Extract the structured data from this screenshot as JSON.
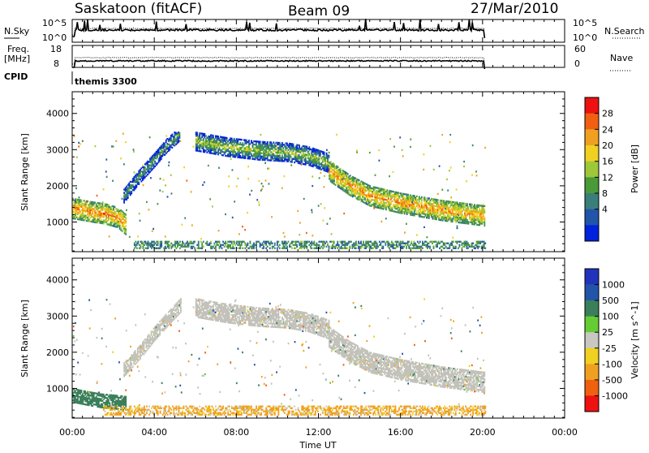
{
  "header": {
    "station": "Saskatoon (fitACF)",
    "beam": "Beam 09",
    "date": "27/Mar/2010"
  },
  "strips": {
    "nsky_label": "N.Sky",
    "nsky_ticks": [
      "10^5",
      "10^0"
    ],
    "nsearch_label": "N.Search",
    "nsearch_ticks": [
      "10^5",
      "10^0"
    ],
    "freq_label": "Freq.",
    "freq_unit": "[MHz]",
    "freq_ticks": [
      "18",
      "8"
    ],
    "nave_label": "Nave",
    "nave_ticks": [
      "60",
      "0"
    ],
    "cpid_label": "CPID",
    "cpid_value": "themis 3300"
  },
  "colors": {
    "power": [
      "#0022dd",
      "#2255aa",
      "#3a7f7a",
      "#4a9a3a",
      "#9ec83a",
      "#f0d020",
      "#f0a020",
      "#f06010",
      "#ee1111"
    ],
    "velocity": [
      "#2233bb",
      "#2255aa",
      "#3a7f5a",
      "#66cc33",
      "#c8c8c0",
      "#f0d020",
      "#f0a020",
      "#f06010",
      "#ee1111"
    ],
    "ground_scatter": "#c2c2ba"
  },
  "chart_data": {
    "type": "heatmap",
    "x_axis": {
      "label": "Time UT",
      "range_hours": [
        0,
        24
      ],
      "ticks": [
        "00:00",
        "04:00",
        "08:00",
        "12:00",
        "16:00",
        "20:00",
        "00:00"
      ],
      "tick_hours": [
        0,
        4,
        8,
        12,
        16,
        20,
        24
      ]
    },
    "y_axis": {
      "label": "Slant Range [km]",
      "range_km": [
        180,
        4600
      ],
      "ticks": [
        "1000",
        "2000",
        "3000",
        "4000"
      ],
      "tick_values": [
        1000,
        2000,
        3000,
        4000
      ]
    },
    "data_end_hour": 20.1,
    "power_panel": {
      "colorbar_label": "Power [dB]",
      "colorbar_ticks": [
        "28",
        "24",
        "20",
        "16",
        "12",
        "8",
        "4"
      ],
      "colorbar_range_db": [
        0,
        32
      ],
      "bands": [
        {
          "hours": [
            0.0,
            0.5,
            1.0,
            1.6,
            2.2,
            2.6
          ],
          "ranges_km": [
            1350,
            1300,
            1250,
            1200,
            1100,
            900
          ],
          "width_km": 550,
          "power_db": 25
        },
        {
          "hours": [
            2.5,
            3.2,
            4.0,
            4.6,
            5.2
          ],
          "ranges_km": [
            1700,
            2200,
            2700,
            3100,
            3400
          ],
          "width_km": 380,
          "power_db": 13
        },
        {
          "hours": [
            6.0,
            7.5,
            9.0,
            10.5,
            11.5,
            12.5
          ],
          "ranges_km": [
            3200,
            3050,
            2950,
            2900,
            2800,
            2600
          ],
          "width_km": 500,
          "power_db": 16
        },
        {
          "hours": [
            12.5,
            13.5,
            14.5,
            16.0,
            18.0,
            20.1
          ],
          "ranges_km": [
            2400,
            2000,
            1700,
            1500,
            1300,
            1150
          ],
          "width_km": 560,
          "power_db": 24
        }
      ],
      "near_range_band": {
        "hours": [
          3.0,
          20.1
        ],
        "range_km": [
          250,
          450
        ],
        "power_db": 10
      }
    },
    "velocity_panel": {
      "colorbar_label": "Velocity [m s^-1]",
      "colorbar_ticks": [
        "1000",
        "500",
        "100",
        "25",
        "-25",
        "-100",
        "-500",
        "-1000"
      ],
      "bands": [
        {
          "hours": [
            0.0,
            0.7,
            1.4,
            2.0,
            2.6
          ],
          "ranges_km": [
            800,
            720,
            650,
            620,
            580
          ],
          "width_km": 400,
          "velocity_ms": 150
        },
        {
          "hours": [
            2.5,
            3.3,
            4.0,
            4.8,
            5.3
          ],
          "ranges_km": [
            1500,
            2000,
            2500,
            3000,
            3300
          ],
          "width_km": 380,
          "velocity_ms": 0
        },
        {
          "hours": [
            6.0,
            7.5,
            9.0,
            10.5,
            11.5,
            12.5
          ],
          "ranges_km": [
            3200,
            3050,
            2950,
            2900,
            2800,
            2600
          ],
          "width_km": 500,
          "velocity_ms": 0
        },
        {
          "hours": [
            12.5,
            13.5,
            14.5,
            16.0,
            18.0,
            20.1
          ],
          "ranges_km": [
            2400,
            2000,
            1700,
            1500,
            1300,
            1150
          ],
          "width_km": 560,
          "velocity_ms": 0
        }
      ],
      "near_range_band": {
        "hours": [
          1.5,
          20.1
        ],
        "range_km": [
          250,
          500
        ],
        "velocity_ms": -100
      }
    }
  }
}
